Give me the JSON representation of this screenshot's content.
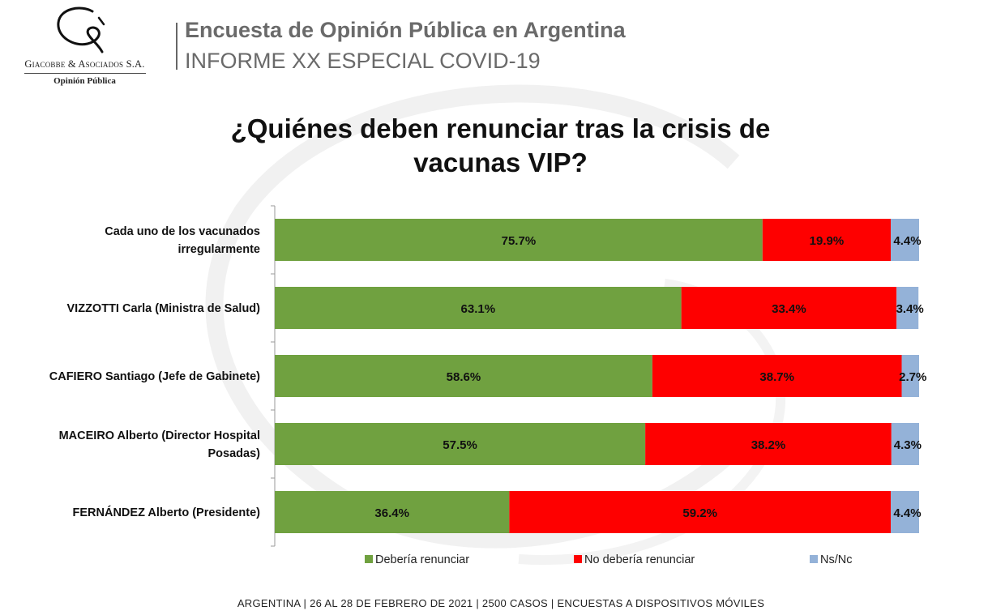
{
  "header": {
    "logo_company": "Giacobbe & Asociados S.A.",
    "logo_sub": "Opinión Pública",
    "title": "Encuesta de Opinión Pública en Argentina",
    "subtitle": "INFORME XX ESPECIAL COVID-19"
  },
  "footer": "ARGENTINA | 26 AL 28 DE FEBRERO DE 2021 | 2500 CASOS | ENCUESTAS A DISPOSITIVOS MÓVILES",
  "chart_data": {
    "type": "bar",
    "orientation": "horizontal",
    "stacked": true,
    "title": "¿Quiénes deben renunciar tras la crisis de vacunas VIP?",
    "title_lines": [
      "¿Quiénes deben renunciar tras la crisis de",
      "vacunas VIP?"
    ],
    "categories": [
      [
        "Cada uno de los vacunados",
        "irregularmente"
      ],
      [
        "VIZZOTTI Carla (Ministra de Salud)"
      ],
      [
        "CAFIERO Santiago (Jefe de Gabinete)"
      ],
      [
        "MACEIRO Alberto (Director Hospital",
        "Posadas)"
      ],
      [
        "FERNÁNDEZ Alberto (Presidente)"
      ]
    ],
    "series": [
      {
        "name": "Debería renunciar",
        "color": "#70a140",
        "values": [
          75.7,
          63.1,
          58.6,
          57.5,
          36.4
        ],
        "labels": [
          "75.7%",
          "63.1%",
          "58.6%",
          "57.5%",
          "36.4%"
        ]
      },
      {
        "name": "No debería renunciar",
        "color": "#fe0000",
        "values": [
          19.9,
          33.4,
          38.7,
          38.2,
          59.2
        ],
        "labels": [
          "19.9%",
          "33.4%",
          "38.7%",
          "38.2%",
          "59.2%"
        ]
      },
      {
        "name": "Ns/Nc",
        "color": "#94b2d8",
        "values": [
          4.4,
          3.4,
          2.7,
          4.3,
          4.4
        ],
        "labels": [
          "4.4%",
          "3.4%",
          "2.7%",
          "4.3%",
          "4.4%"
        ]
      }
    ],
    "xlim": [
      0,
      100
    ],
    "legend": "bottom",
    "grid": false
  }
}
